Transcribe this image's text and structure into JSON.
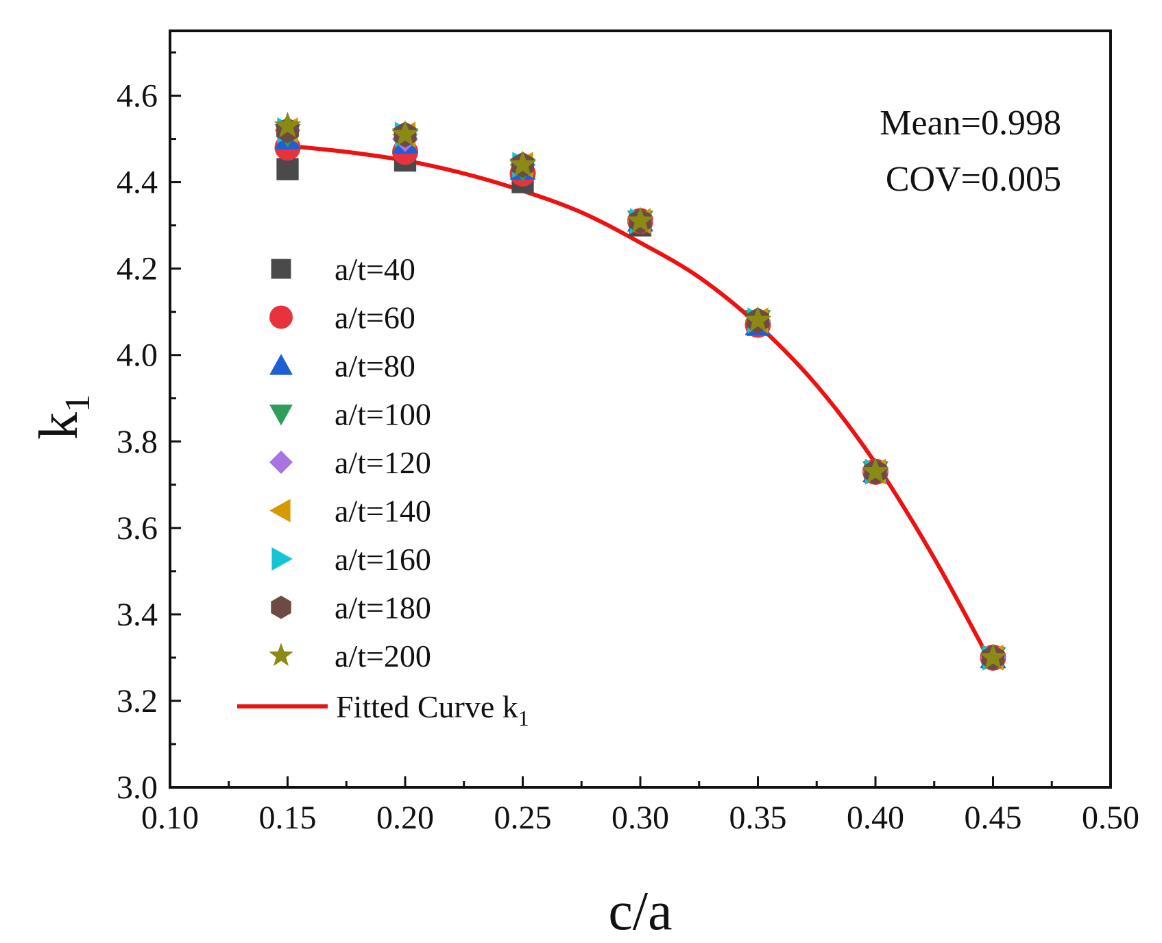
{
  "chart_data": {
    "type": "scatter",
    "xlabel": "c/a",
    "ylabel_main": "k",
    "ylabel_sub": "1",
    "xlim": [
      0.1,
      0.5
    ],
    "ylim": [
      3.0,
      4.75
    ],
    "xticks": [
      0.1,
      0.15,
      0.2,
      0.25,
      0.3,
      0.35,
      0.4,
      0.45,
      0.5
    ],
    "xtick_labels": [
      "0.10",
      "0.15",
      "0.20",
      "0.25",
      "0.30",
      "0.35",
      "0.40",
      "0.45",
      "0.50"
    ],
    "yticks": [
      3.0,
      3.2,
      3.4,
      3.6,
      3.8,
      4.0,
      4.2,
      4.4,
      4.6
    ],
    "ytick_labels": [
      "3.0",
      "3.2",
      "3.4",
      "3.6",
      "3.8",
      "4.0",
      "4.2",
      "4.4",
      "4.6"
    ],
    "x": [
      0.15,
      0.2,
      0.25,
      0.3,
      0.35,
      0.4,
      0.45
    ],
    "series": [
      {
        "name": "a/t=40",
        "marker": "square",
        "color": "#4a4a4a",
        "values": [
          4.43,
          4.45,
          4.4,
          4.3,
          4.07,
          3.73,
          3.3
        ]
      },
      {
        "name": "a/t=60",
        "marker": "circle",
        "color": "#e8323c",
        "values": [
          4.48,
          4.47,
          4.42,
          4.31,
          4.07,
          3.73,
          3.3
        ]
      },
      {
        "name": "a/t=80",
        "marker": "triangle-up",
        "color": "#1f5fd6",
        "values": [
          4.5,
          4.49,
          4.43,
          4.31,
          4.07,
          3.73,
          3.3
        ]
      },
      {
        "name": "a/t=100",
        "marker": "triangle-down",
        "color": "#2e9e5b",
        "values": [
          4.51,
          4.5,
          4.43,
          4.31,
          4.08,
          3.73,
          3.3
        ]
      },
      {
        "name": "a/t=120",
        "marker": "diamond",
        "color": "#a774e0",
        "values": [
          4.52,
          4.5,
          4.44,
          4.31,
          4.08,
          3.73,
          3.3
        ]
      },
      {
        "name": "a/t=140",
        "marker": "triangle-left",
        "color": "#d49a00",
        "values": [
          4.52,
          4.51,
          4.44,
          4.31,
          4.08,
          3.73,
          3.3
        ]
      },
      {
        "name": "a/t=160",
        "marker": "triangle-right",
        "color": "#17c4d3",
        "values": [
          4.52,
          4.51,
          4.44,
          4.31,
          4.08,
          3.73,
          3.3
        ]
      },
      {
        "name": "a/t=180",
        "marker": "hexagon",
        "color": "#6e4a44",
        "values": [
          4.52,
          4.51,
          4.44,
          4.31,
          4.08,
          3.73,
          3.3
        ]
      },
      {
        "name": "a/t=200",
        "marker": "star",
        "color": "#8a8a14",
        "values": [
          4.53,
          4.51,
          4.44,
          4.31,
          4.08,
          3.73,
          3.3
        ]
      }
    ],
    "fitted_curve": {
      "name_main": "Fitted Curve k",
      "name_sub": "1",
      "color": "#ee1111",
      "x": [
        0.15,
        0.175,
        0.2,
        0.225,
        0.25,
        0.275,
        0.3,
        0.325,
        0.35,
        0.375,
        0.4,
        0.425,
        0.45
      ],
      "values": [
        4.484,
        4.47,
        4.45,
        4.42,
        4.38,
        4.33,
        4.26,
        4.18,
        4.07,
        3.93,
        3.75,
        3.53,
        3.28
      ]
    },
    "annotations": {
      "mean": "Mean=0.998",
      "cov": "COV=0.005"
    },
    "legend_position": "left-center"
  }
}
